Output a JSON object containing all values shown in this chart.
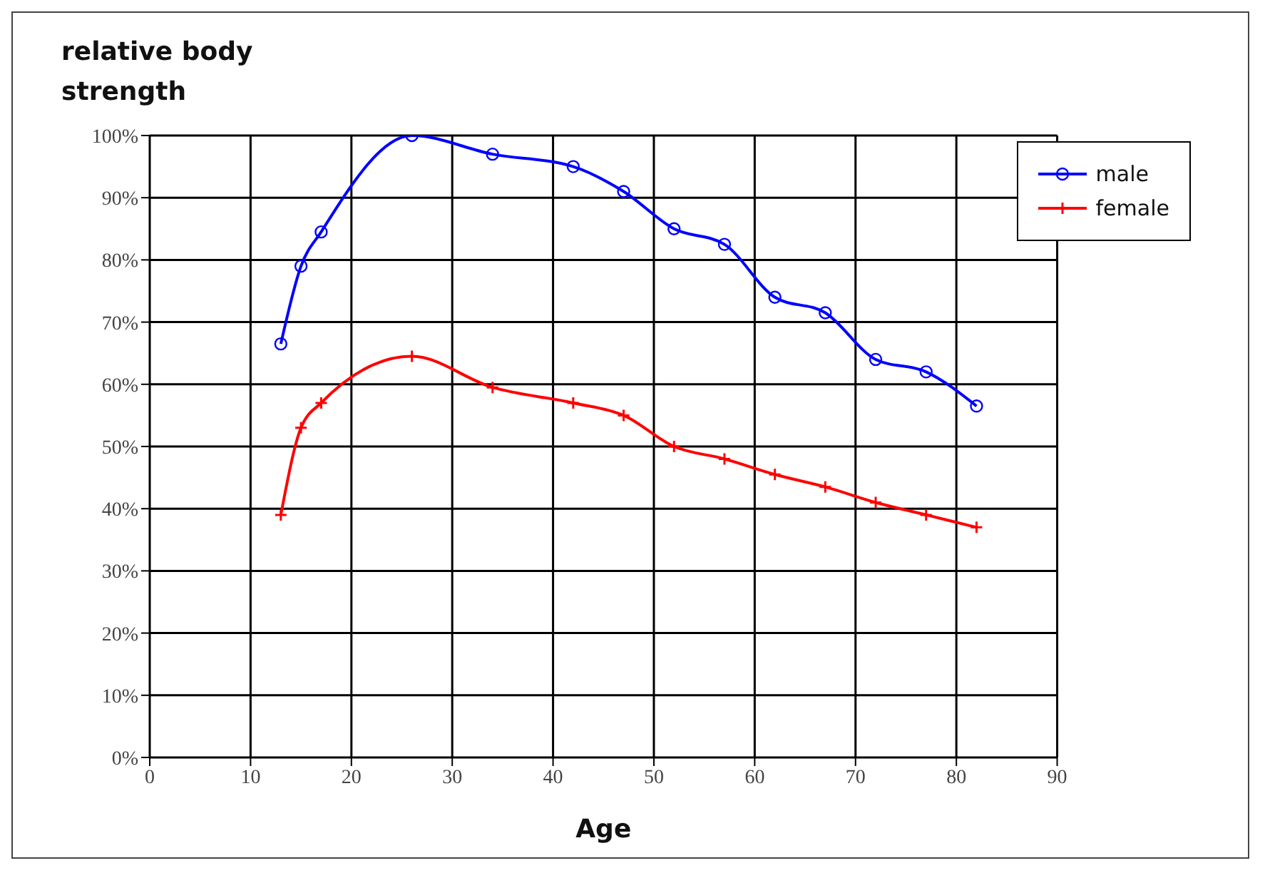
{
  "chart_data": {
    "type": "line",
    "ylabel": "relative body strength",
    "xlabel": "Age",
    "x": [
      13,
      15,
      17,
      26,
      34,
      42,
      47,
      52,
      57,
      62,
      67,
      72,
      77,
      82
    ],
    "series": [
      {
        "name": "male",
        "color": "#0000ff",
        "marker": "circle",
        "values": [
          66.5,
          79,
          84.5,
          100,
          97,
          95,
          91,
          85,
          82.5,
          74,
          71.5,
          64,
          62,
          56.5
        ]
      },
      {
        "name": "female",
        "color": "#ff0000",
        "marker": "cross",
        "values": [
          39,
          53,
          57,
          64.5,
          59.5,
          57,
          55,
          50,
          48,
          45.5,
          43.5,
          41,
          39,
          37
        ]
      }
    ],
    "xlim": [
      0,
      90
    ],
    "xticks": [
      0,
      10,
      20,
      30,
      40,
      50,
      60,
      70,
      80,
      90
    ],
    "ylim": [
      0,
      100
    ],
    "yticks": [
      {
        "value": 0,
        "label": "0%"
      },
      {
        "value": 10,
        "label": "10%"
      },
      {
        "value": 20,
        "label": "20%"
      },
      {
        "value": 30,
        "label": "30%"
      },
      {
        "value": 40,
        "label": "40%"
      },
      {
        "value": 50,
        "label": "50%"
      },
      {
        "value": 60,
        "label": "60%"
      },
      {
        "value": 70,
        "label": "70%"
      },
      {
        "value": 80,
        "label": "80%"
      },
      {
        "value": 90,
        "label": "90%"
      },
      {
        "value": 100,
        "label": "100%"
      }
    ],
    "grid": true,
    "legend": "top right",
    "line_style": "solid"
  }
}
